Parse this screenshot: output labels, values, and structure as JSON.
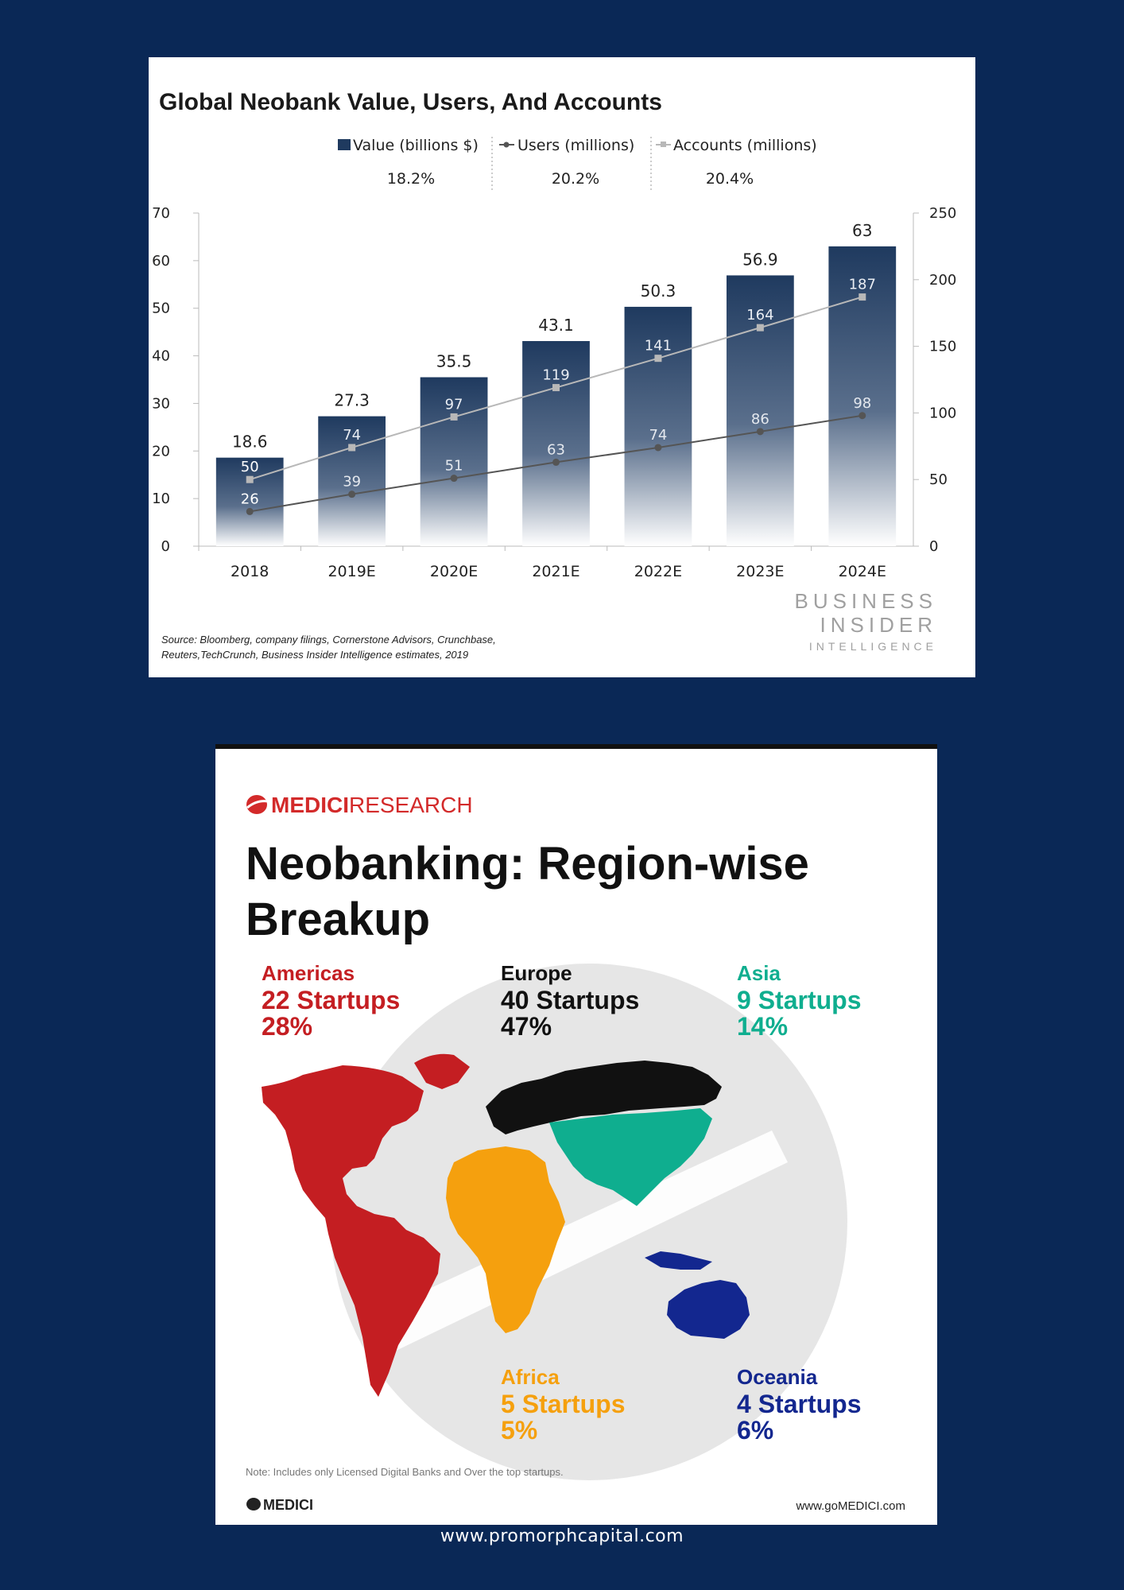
{
  "chart_data": {
    "type": "bar",
    "title": "Global Neobank Value, Users, And Accounts",
    "categories": [
      "2018",
      "2019E",
      "2020E",
      "2021E",
      "2022E",
      "2023E",
      "2024E"
    ],
    "ylim": [
      0,
      70
    ],
    "yticks": [
      "0",
      "10",
      "20",
      "30",
      "40",
      "50",
      "60",
      "70"
    ],
    "y2lim": [
      0,
      250
    ],
    "y2ticks": [
      "0",
      "50",
      "100",
      "150",
      "200",
      "250"
    ],
    "series": [
      {
        "name": "Value (billions $)",
        "type": "bar",
        "axis": "left",
        "color": "#1f3a5f",
        "values": [
          18.6,
          27.3,
          35.5,
          43.1,
          50.3,
          56.9,
          63
        ],
        "labels": [
          "18.6",
          "27.3",
          "35.5",
          "43.1",
          "50.3",
          "56.9",
          "63"
        ],
        "cagr": "18.2%"
      },
      {
        "name": "Users (millions)",
        "type": "line",
        "axis": "right",
        "color": "#555555",
        "values": [
          26,
          39,
          51,
          63,
          74,
          86,
          98
        ],
        "labels": [
          "26",
          "39",
          "51",
          "63",
          "74",
          "86",
          "98"
        ],
        "cagr": "20.2%"
      },
      {
        "name": "Accounts (millions)",
        "type": "line",
        "axis": "right",
        "color": "#b8b8b8",
        "values": [
          50,
          74,
          97,
          119,
          141,
          164,
          187
        ],
        "labels": [
          "50",
          "74",
          "97",
          "119",
          "141",
          "164",
          "187"
        ],
        "cagr": "20.4%"
      }
    ],
    "legend_position": "top",
    "grid": false,
    "source": "Source: Bloomberg, company filings, Cornerstone Advisors, Crunchbase,",
    "source2": "Reuters,TechCrunch, Business Insider Intelligence estimates, 2019",
    "brand_line1": "BUSINESS",
    "brand_line2": "INSIDER",
    "brand_line3": "INTELLIGENCE"
  },
  "infographic": {
    "brand": "MEDICI",
    "brand_suffix": "RESEARCH",
    "title_line1": "Neobanking: Region-wise",
    "title_line2": "Breakup",
    "regions": [
      {
        "name": "Americas",
        "startups": "22 Startups",
        "share": "28%",
        "color": "#c41e22"
      },
      {
        "name": "Europe",
        "startups": "40 Startups",
        "share": "47%",
        "color": "#111111"
      },
      {
        "name": "Asia",
        "startups": "9 Startups",
        "share": "14%",
        "color": "#0fae8f"
      },
      {
        "name": "Africa",
        "startups": "5 Startups",
        "share": "5%",
        "color": "#f5a00e"
      },
      {
        "name": "Oceania",
        "startups": "4 Startups",
        "share": "6%",
        "color": "#13278f"
      }
    ],
    "note": "Note: Includes only Licensed Digital Banks and Over the top startups.",
    "footer_brand": "MEDICI",
    "footer_url": "www.goMEDICI.com"
  },
  "page": {
    "footer_url": "www.promorphcapital.com"
  }
}
